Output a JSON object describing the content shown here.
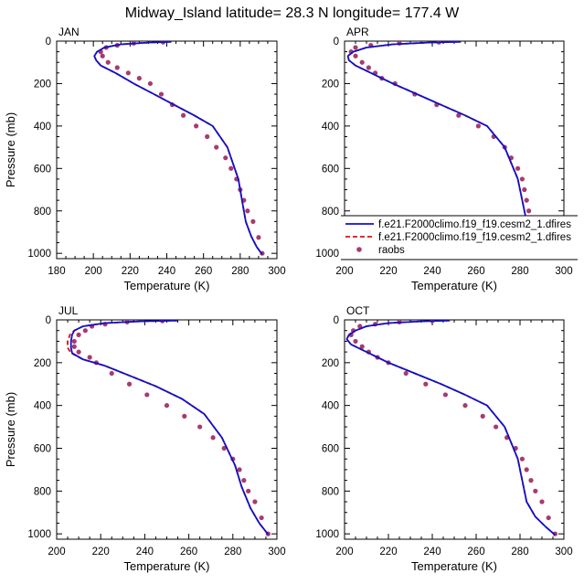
{
  "figure": {
    "title": "Midway_Island  latitude= 28.3 N longitude= 177.4 W"
  },
  "legend": {
    "entries": [
      {
        "label": "f.e21.F2000climo.f19_f19.cesm2_1.dfires",
        "color": "#1010c8",
        "style": "solid"
      },
      {
        "label": "f.e21.F2000climo.f19_f19.cesm2_1.dfires",
        "color": "#dd1111",
        "style": "dashed"
      },
      {
        "label": "raobs",
        "color": "#a83a6e",
        "style": "marker"
      }
    ]
  },
  "chart_data": [
    {
      "type": "line",
      "panel": "JAN",
      "title": "JAN",
      "xlabel": "Temperature (K)",
      "ylabel": "Pressure (mb)",
      "xlim": [
        180,
        300
      ],
      "ylim": [
        1025,
        0
      ],
      "xticks": [
        180,
        200,
        220,
        240,
        260,
        280,
        300
      ],
      "yticks": [
        0,
        200,
        400,
        600,
        800,
        1000
      ],
      "series": [
        {
          "name": "f.e21.F2000climo.f19_f19.cesm2_1.dfires",
          "color": "#1010c8",
          "style": "solid",
          "x": [
            242.5,
            230,
            215,
            206,
            202,
            200.5,
            201.5,
            204,
            212,
            222,
            233,
            244,
            255,
            265,
            273,
            279,
            281,
            283,
            286,
            289,
            292
          ],
          "y": [
            3,
            7,
            15,
            30,
            50,
            70,
            90,
            115,
            150,
            200,
            250,
            300,
            350,
            400,
            500,
            650,
            750,
            850,
            920,
            970,
            1005
          ]
        },
        {
          "name": "f.e21.F2000climo.f19_f19.cesm2_1.dfires",
          "color": "#dd1111",
          "style": "dashed",
          "x": [
            242.5,
            230,
            215,
            206,
            202,
            200.5,
            201.5,
            204,
            212,
            222,
            233,
            244,
            255,
            265,
            273,
            279,
            281,
            283,
            286,
            289,
            292
          ],
          "y": [
            3,
            7,
            15,
            30,
            50,
            70,
            90,
            115,
            150,
            200,
            250,
            300,
            350,
            400,
            500,
            650,
            750,
            850,
            920,
            970,
            1005
          ]
        },
        {
          "name": "raobs",
          "color": "#a83a6e",
          "style": "marker",
          "x": [
            238,
            222,
            213,
            207,
            204,
            205,
            208,
            213,
            219,
            225,
            231,
            237,
            243,
            249,
            256,
            262,
            267,
            272,
            275,
            278,
            280,
            282,
            284,
            287,
            290,
            292
          ],
          "y": [
            5,
            10,
            20,
            30,
            50,
            70,
            100,
            125,
            150,
            175,
            200,
            250,
            300,
            350,
            400,
            450,
            500,
            550,
            600,
            650,
            700,
            750,
            800,
            850,
            925,
            1000
          ]
        }
      ]
    },
    {
      "type": "line",
      "panel": "APR",
      "title": "APR",
      "xlabel": "Temperature (K)",
      "ylabel": "",
      "xlim": [
        200,
        300
      ],
      "ylim": [
        1025,
        0
      ],
      "xticks": [
        200,
        220,
        240,
        260,
        280,
        300
      ],
      "yticks": [
        0,
        200,
        400,
        600,
        800,
        1000
      ],
      "series": [
        {
          "name": "f.e21.F2000climo.f19_f19.cesm2_1.dfires",
          "color": "#1010c8",
          "style": "solid",
          "x": [
            253,
            238,
            222,
            210,
            204,
            201.5,
            202,
            205,
            212,
            222,
            233,
            244,
            255,
            265,
            273,
            279,
            281,
            283,
            287,
            290,
            293
          ],
          "y": [
            3,
            7,
            15,
            30,
            50,
            70,
            90,
            115,
            150,
            200,
            250,
            300,
            350,
            400,
            500,
            650,
            750,
            850,
            920,
            970,
            1005
          ]
        },
        {
          "name": "f.e21.F2000climo.f19_f19.cesm2_1.dfires",
          "color": "#dd1111",
          "style": "dashed",
          "x": [
            253,
            238,
            222,
            210,
            204,
            201.5,
            202,
            205,
            212,
            222,
            233,
            244,
            255,
            265,
            273,
            279,
            281,
            283,
            287,
            290,
            293
          ],
          "y": [
            3,
            7,
            15,
            30,
            50,
            70,
            90,
            115,
            150,
            200,
            250,
            300,
            350,
            400,
            500,
            650,
            750,
            850,
            920,
            970,
            1005
          ]
        },
        {
          "name": "raobs",
          "color": "#a83a6e",
          "style": "marker",
          "x": [
            243,
            225,
            212,
            205,
            203,
            205,
            208,
            211,
            214,
            217,
            223,
            232,
            242,
            252,
            261,
            268,
            273,
            276,
            279,
            281,
            282,
            283,
            284,
            286,
            289,
            292
          ],
          "y": [
            5,
            10,
            20,
            30,
            50,
            70,
            100,
            125,
            150,
            175,
            200,
            250,
            300,
            350,
            400,
            450,
            500,
            550,
            600,
            650,
            700,
            750,
            800,
            850,
            925,
            1000
          ]
        }
      ]
    },
    {
      "type": "line",
      "panel": "JUL",
      "title": "JUL",
      "xlabel": "Temperature (K)",
      "ylabel": "Pressure (mb)",
      "xlim": [
        200,
        300
      ],
      "ylim": [
        1025,
        0
      ],
      "xticks": [
        200,
        220,
        240,
        260,
        280,
        300
      ],
      "yticks": [
        0,
        200,
        400,
        600,
        800,
        1000
      ],
      "series": [
        {
          "name": "f.e21.F2000climo.f19_f19.cesm2_1.dfires",
          "color": "#1010c8",
          "style": "solid",
          "x": [
            255,
            238,
            222,
            212,
            208,
            207,
            206.5,
            206.5,
            207,
            212,
            222,
            233,
            245,
            257,
            267,
            275,
            281,
            284,
            288,
            292,
            296
          ],
          "y": [
            3,
            7,
            15,
            30,
            50,
            70,
            100,
            130,
            155,
            185,
            215,
            260,
            310,
            370,
            440,
            550,
            680,
            780,
            880,
            950,
            1003
          ]
        },
        {
          "name": "f.e21.F2000climo.f19_f19.cesm2_1.dfires",
          "color": "#dd1111",
          "style": "dashed",
          "x": [
            255,
            238,
            222,
            212,
            208,
            206,
            205,
            205,
            206.5,
            212,
            222,
            233,
            245,
            257,
            267,
            275,
            281,
            284,
            288,
            292,
            296
          ],
          "y": [
            3,
            7,
            15,
            30,
            50,
            70,
            100,
            130,
            155,
            185,
            215,
            260,
            310,
            370,
            440,
            550,
            680,
            780,
            880,
            950,
            1003
          ]
        },
        {
          "name": "raobs",
          "color": "#a83a6e",
          "style": "marker",
          "x": [
            248,
            232,
            222,
            216,
            213,
            210,
            208,
            208,
            210,
            215,
            218,
            225,
            233,
            241,
            250,
            258,
            265,
            271,
            276,
            280,
            283,
            285,
            287,
            290,
            293,
            296
          ],
          "y": [
            5,
            10,
            20,
            30,
            50,
            70,
            100,
            125,
            150,
            175,
            200,
            250,
            300,
            350,
            400,
            450,
            500,
            550,
            600,
            650,
            700,
            750,
            800,
            850,
            925,
            1000
          ]
        }
      ]
    },
    {
      "type": "line",
      "panel": "OCT",
      "title": "OCT",
      "xlabel": "Temperature (K)",
      "ylabel": "",
      "xlim": [
        200,
        300
      ],
      "ylim": [
        1025,
        0
      ],
      "xticks": [
        200,
        220,
        240,
        260,
        280,
        300
      ],
      "yticks": [
        0,
        200,
        400,
        600,
        800,
        1000
      ],
      "series": [
        {
          "name": "f.e21.F2000climo.f19_f19.cesm2_1.dfires",
          "color": "#1010c8",
          "style": "solid",
          "x": [
            248,
            235,
            220,
            210,
            205,
            202,
            201,
            203,
            210,
            220,
            232,
            244,
            255,
            265,
            273,
            279,
            281,
            283,
            287,
            292,
            296
          ],
          "y": [
            3,
            7,
            15,
            30,
            50,
            70,
            90,
            115,
            150,
            200,
            250,
            300,
            350,
            400,
            500,
            650,
            750,
            850,
            920,
            970,
            1005
          ]
        },
        {
          "name": "f.e21.F2000climo.f19_f19.cesm2_1.dfires",
          "color": "#dd1111",
          "style": "dashed",
          "x": [
            248,
            235,
            220,
            210,
            205,
            202,
            201,
            203,
            210,
            220,
            232,
            244,
            255,
            265,
            273,
            279,
            281,
            283,
            287,
            292,
            296
          ],
          "y": [
            3,
            7,
            15,
            30,
            50,
            70,
            90,
            115,
            150,
            200,
            250,
            300,
            350,
            400,
            500,
            650,
            750,
            850,
            920,
            970,
            1005
          ]
        },
        {
          "name": "raobs",
          "color": "#a83a6e",
          "style": "marker",
          "x": [
            240,
            225,
            214,
            207,
            204,
            203,
            205,
            208,
            211,
            215,
            220,
            228,
            237,
            246,
            255,
            263,
            269,
            274,
            278,
            281,
            283,
            285,
            287,
            290,
            293,
            296
          ],
          "y": [
            5,
            10,
            20,
            30,
            50,
            70,
            100,
            125,
            150,
            175,
            200,
            250,
            300,
            350,
            400,
            450,
            500,
            550,
            600,
            650,
            700,
            750,
            800,
            850,
            925,
            1000
          ]
        }
      ]
    }
  ]
}
